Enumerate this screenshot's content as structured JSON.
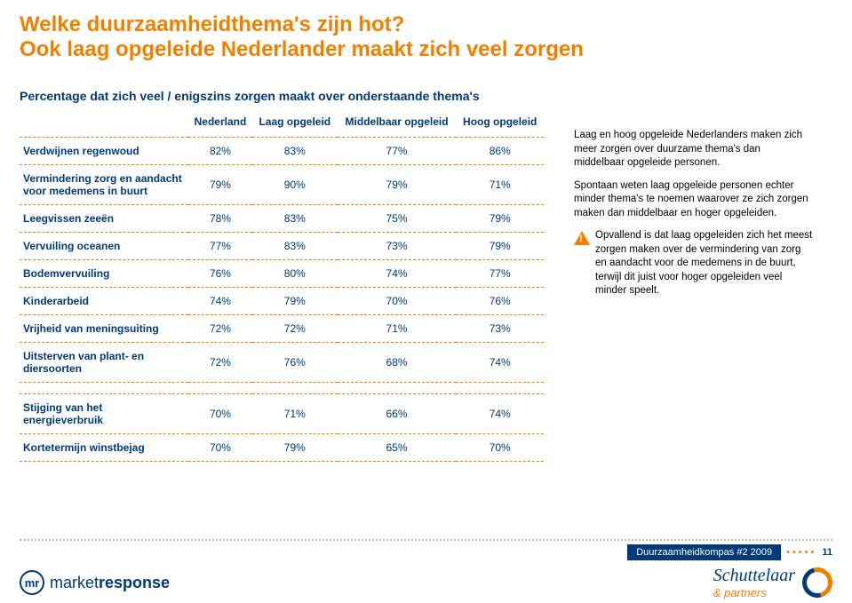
{
  "header": {
    "title1": "Welke duurzaamheidthema's zijn hot?",
    "title2": "Ook laag opgeleide Nederlander maakt zich veel zorgen"
  },
  "lead": "Percentage dat zich veel / enigszins zorgen maakt over onderstaande thema's",
  "table": {
    "columns": [
      "",
      "Nederland",
      "Laag opgeleid",
      "Middelbaar opgeleid",
      "Hoog opgeleid"
    ],
    "rows": [
      {
        "label": "Verdwijnen regenwoud",
        "vals": [
          "82%",
          "83%",
          "77%",
          "86%"
        ]
      },
      {
        "label": "Vermindering zorg en aandacht voor medemens in buurt",
        "vals": [
          "79%",
          "90%",
          "79%",
          "71%"
        ]
      },
      {
        "label": "Leegvissen zeeën",
        "vals": [
          "78%",
          "83%",
          "75%",
          "79%"
        ]
      },
      {
        "label": "Vervuiling oceanen",
        "vals": [
          "77%",
          "83%",
          "73%",
          "79%"
        ]
      },
      {
        "label": "Bodemvervuiling",
        "vals": [
          "76%",
          "80%",
          "74%",
          "77%"
        ]
      },
      {
        "label": "Kinderarbeid",
        "vals": [
          "74%",
          "79%",
          "70%",
          "76%"
        ]
      },
      {
        "label": "Vrijheid van meningsuiting",
        "vals": [
          "72%",
          "72%",
          "71%",
          "73%"
        ]
      },
      {
        "label": "Uitsterven van plant- en diersoorten",
        "vals": [
          "72%",
          "76%",
          "68%",
          "74%"
        ]
      },
      {
        "label": "Stijging van het energieverbruik",
        "vals": [
          "70%",
          "71%",
          "66%",
          "74%"
        ]
      },
      {
        "label": "Kortetermijn winstbejag",
        "vals": [
          "70%",
          "79%",
          "65%",
          "70%"
        ]
      }
    ],
    "breaks_after": [
      7
    ]
  },
  "sidebar": {
    "p1": "Laag en hoog opgeleide Nederlanders maken zich meer zorgen over duurzame thema's dan middelbaar opgeleide personen.",
    "p2": "Spontaan weten laag opgeleide personen echter minder thema's te noemen waarover ze zich zorgen maken dan middelbaar en hoger opgeleiden.",
    "p3": "Opvallend is dat laag opgeleiden zich het meest zorgen maken over de vermindering van zorg en aandacht voor de medemens in de buurt, terwijl dit juist voor hoger opgeleiden veel minder speelt."
  },
  "footer": {
    "label": "Duurzaamheidkompas #2 2009",
    "page": "11",
    "logo_left_a": "market",
    "logo_left_b": "response",
    "logo_right_name": "Schuttelaar",
    "logo_right_amp": "& partners",
    "mr_badge": "mr"
  },
  "style": {
    "accent": "#f08000",
    "primary": "#003a7a"
  }
}
